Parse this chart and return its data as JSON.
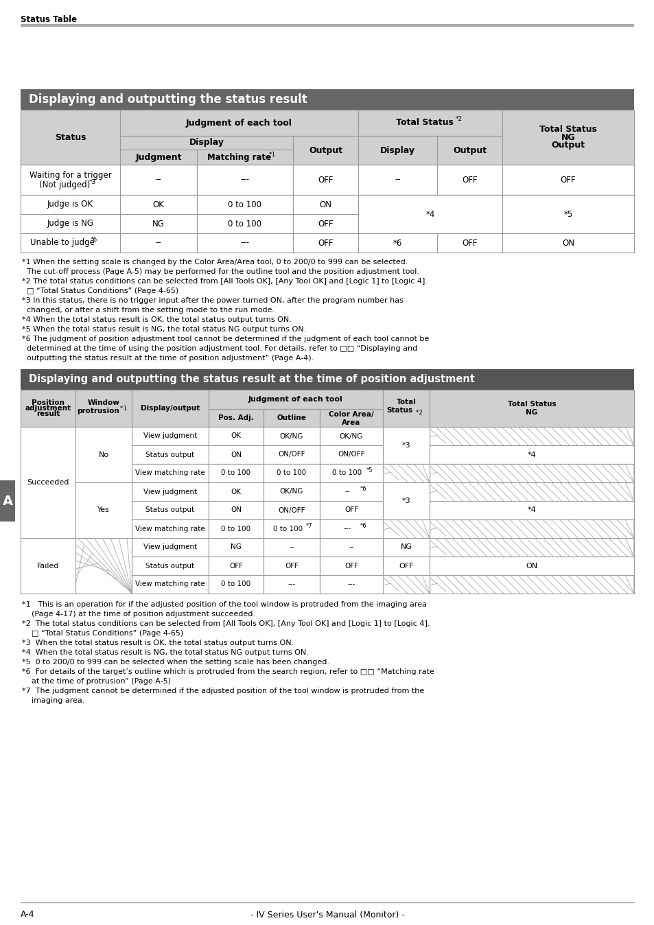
{
  "page_header": "Status Table",
  "table1_title": "Displaying and outputting the status result",
  "table1_title_bg": "#666666",
  "table1_title_color": "#ffffff",
  "table2_title": "Displaying and outputting the status result at the time of position adjustment",
  "table2_title_bg": "#555555",
  "table2_title_color": "#ffffff",
  "header_bg": "#d0d0d0",
  "border_color": "#999999",
  "footnotes1": [
    [
      "*1",
      " When the setting scale is changed by the Color Area/Area tool, 0 to 200/0 to 999 can be selected."
    ],
    [
      "",
      "  The cut-off process (Page A-5) may be performed for the outline tool and the position adjustment tool."
    ],
    [
      "*2",
      " The total status conditions can be selected from [All Tools OK], [Any Tool OK] and [Logic 1] to [Logic 4]."
    ],
    [
      "",
      "  □ “Total Status Conditions” (Page 4-65)"
    ],
    [
      "*3",
      " In this status, there is no trigger input after the power turned ON, after the program number has"
    ],
    [
      "",
      "  changed, or after a shift from the setting mode to the run mode."
    ],
    [
      "*4",
      " When the total status result is OK, the total status output turns ON."
    ],
    [
      "*5",
      " When the total status result is NG, the total status NG output turns ON."
    ],
    [
      "*6",
      " The judgment of position adjustment tool cannot be determined if the judgment of each tool cannot be"
    ],
    [
      "",
      "  determined at the time of using the position adjustment tool. For details, refer to □□ “Displaying and"
    ],
    [
      "",
      "  outputting the status result at the time of position adjustment” (Page A-4)."
    ]
  ],
  "footnotes2": [
    [
      "*1",
      "   This is an operation for if the adjusted position of the tool window is protruded from the imaging area"
    ],
    [
      "",
      "    (Page 4-17) at the time of position adjustment succeeded."
    ],
    [
      "*2",
      "  The total status conditions can be selected from [All Tools OK], [Any Tool OK] and [Logic 1] to [Logic 4]."
    ],
    [
      "",
      "    □ “Total Status Conditions” (Page 4-65)"
    ],
    [
      "*3",
      "  When the total status result is OK, the total status output turns ON."
    ],
    [
      "*4",
      "  When the total status result is NG, the total status NG output turns ON."
    ],
    [
      "*5",
      "  0 to 200/0 to 999 can be selected when the setting scale has been changed."
    ],
    [
      "*6",
      "  For details of the target’s outline which is protruded from the search region, refer to □□ “Matching rate"
    ],
    [
      "",
      "    at the time of protrusion” (Page A-5)"
    ],
    [
      "*7",
      "  The judgment cannot be determined if the adjusted position of the tool window is protruded from the"
    ],
    [
      "",
      "    imaging area."
    ]
  ],
  "page_footer_left": "A-4",
  "page_footer_center": "- IV Series User's Manual (Monitor) -",
  "sidebar_label": "A",
  "sidebar_color": "#666666"
}
